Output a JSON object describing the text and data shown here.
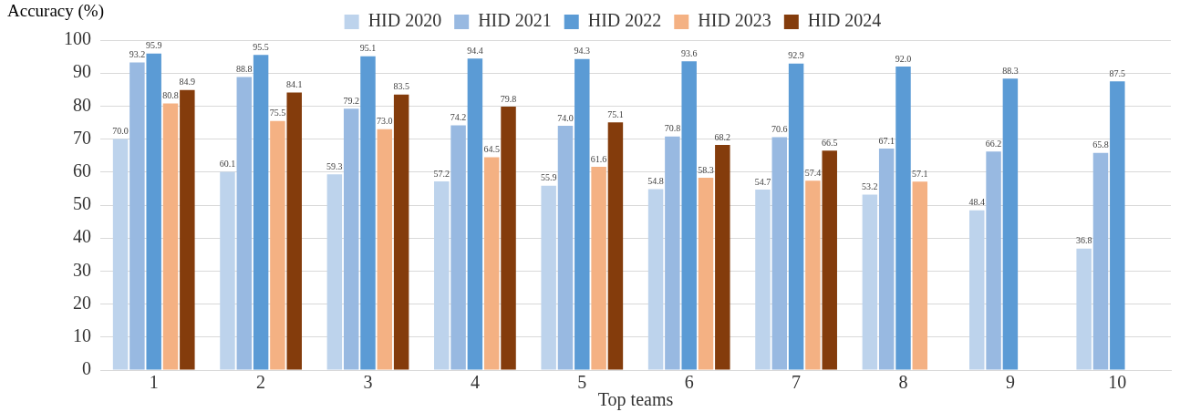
{
  "chart_data": {
    "type": "bar",
    "xlabel": "Top teams",
    "ylabel": "Accuracy (%)",
    "categories": [
      "1",
      "2",
      "3",
      "4",
      "5",
      "6",
      "7",
      "8",
      "9",
      "10"
    ],
    "series": [
      {
        "name": "HID 2020",
        "color": "#bdd3ec",
        "values": [
          70.0,
          60.1,
          59.3,
          57.2,
          55.9,
          54.8,
          54.7,
          53.2,
          48.4,
          36.8
        ],
        "value_labels": [
          "70.0",
          "60.1",
          "59.3",
          "57.2",
          "55.9",
          "54.8",
          "54.7",
          "53.2",
          "48.4",
          "36.8"
        ]
      },
      {
        "name": "HID 2021",
        "color": "#98b9e1",
        "values": [
          93.2,
          88.8,
          79.2,
          74.2,
          74.0,
          70.8,
          70.6,
          67.1,
          66.2,
          65.8
        ],
        "value_labels": [
          "93.2",
          "88.8",
          "79.2",
          "74.2",
          "74.0",
          "70.8",
          "70.6",
          "67.1",
          "66.2",
          "65.8"
        ]
      },
      {
        "name": "HID 2022",
        "color": "#5b9bd5",
        "values": [
          95.9,
          95.5,
          95.1,
          94.4,
          94.3,
          93.6,
          92.9,
          92.0,
          88.3,
          87.5
        ],
        "value_labels": [
          "95.9",
          "95.5",
          "95.1",
          "94.4",
          "94.3",
          "93.6",
          "92.9",
          "92.0",
          "88.3",
          "87.5"
        ]
      },
      {
        "name": "HID 2023",
        "color": "#f4b183",
        "values": [
          80.8,
          75.5,
          73.0,
          64.5,
          61.6,
          58.3,
          57.4,
          57.1,
          null,
          null
        ],
        "value_labels": [
          "80.8",
          "75.5",
          "73.0",
          "64.5",
          "61.6",
          "58.3",
          "57.4",
          "57.1",
          null,
          null
        ]
      },
      {
        "name": "HID 2024",
        "color": "#843c0c",
        "values": [
          84.9,
          84.1,
          83.5,
          79.8,
          75.1,
          68.2,
          66.5,
          null,
          null,
          null
        ],
        "value_labels": [
          "84.9",
          "84.1",
          "83.5",
          "79.8",
          "75.1",
          "68.2",
          "66.5",
          null,
          null,
          null
        ]
      }
    ],
    "ylim": [
      0,
      100
    ],
    "yticks": [
      0,
      10,
      20,
      30,
      40,
      50,
      60,
      70,
      80,
      90,
      100
    ],
    "grid": "y",
    "legend": "top"
  }
}
